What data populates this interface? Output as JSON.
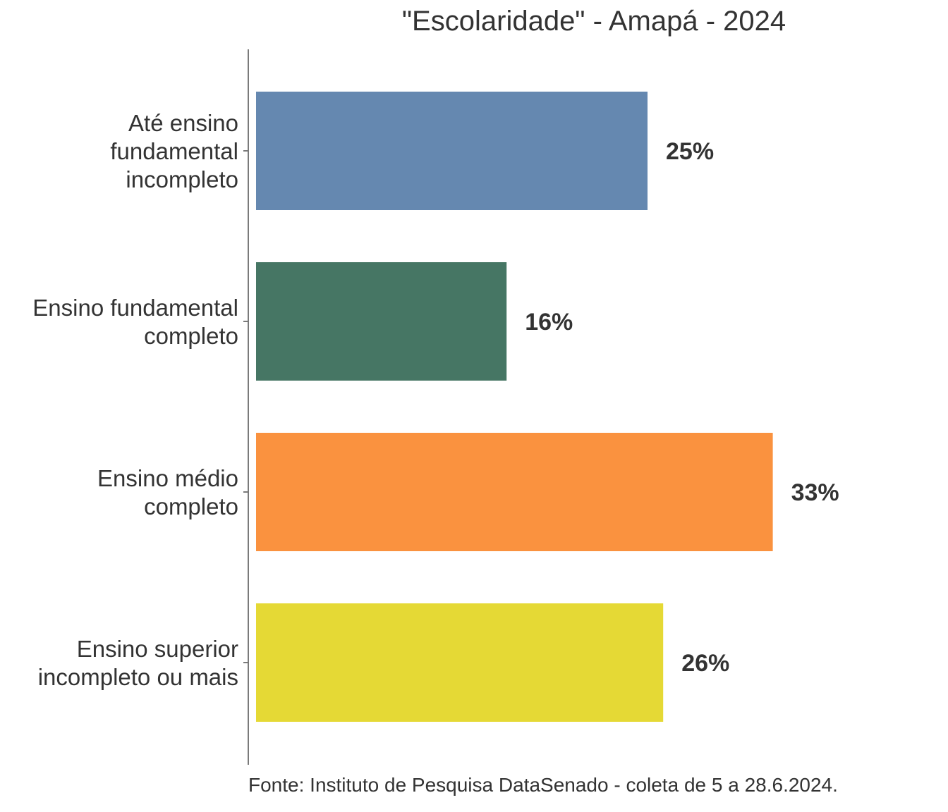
{
  "chart_data": {
    "type": "bar",
    "orientation": "horizontal",
    "title": "\"Escolaridade\" - Amapá - 2024",
    "categories": [
      [
        "Até ensino",
        "fundamental",
        "incompleto"
      ],
      [
        "Ensino fundamental",
        "completo"
      ],
      [
        "Ensino médio",
        "completo"
      ],
      [
        "Ensino superior",
        "incompleto ou mais"
      ]
    ],
    "values": [
      25,
      16,
      33,
      26
    ],
    "value_labels": [
      "25%",
      "16%",
      "33%",
      "26%"
    ],
    "colors": [
      "#6588b0",
      "#467664",
      "#fa923f",
      "#e5d935"
    ],
    "xlim": [
      0,
      40
    ],
    "grid": false,
    "source": "Fonte: Instituto de Pesquisa DataSenado - coleta de 5 a 28.6.2024."
  }
}
